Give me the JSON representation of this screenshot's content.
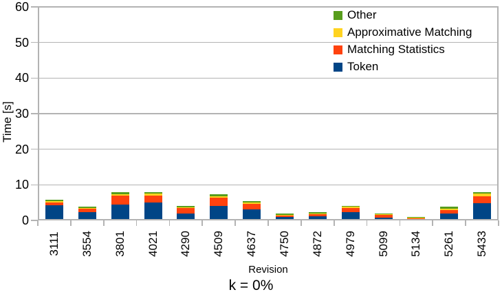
{
  "chart_data": {
    "type": "bar",
    "stacked": true,
    "title": "",
    "subtitle": "k = 0%",
    "xlabel": "Revision",
    "ylabel": "Time [s]",
    "ylim": [
      0,
      60
    ],
    "ytick_step": 10,
    "grid": true,
    "legend_position": "top-right",
    "legend_order_top_to_bottom": [
      "Other",
      "Approximative Matching",
      "Matching Statistics",
      "Token"
    ],
    "categories": [
      "3111",
      "3554",
      "3801",
      "4021",
      "4290",
      "4509",
      "4637",
      "4750",
      "4872",
      "4979",
      "5099",
      "5134",
      "5261",
      "5433"
    ],
    "series": [
      {
        "name": "Token",
        "color": "#004586",
        "values": [
          4.3,
          2.3,
          4.4,
          5.1,
          2.0,
          4.1,
          3.1,
          0.9,
          1.1,
          2.4,
          0.8,
          0.35,
          2.0,
          4.9
        ]
      },
      {
        "name": "Matching Statistics",
        "color": "#ff420e",
        "values": [
          0.8,
          0.9,
          2.5,
          1.95,
          1.4,
          2.3,
          1.6,
          0.5,
          0.6,
          1.15,
          0.7,
          0.25,
          1.0,
          1.95
        ]
      },
      {
        "name": "Approximative Matching",
        "color": "#ffd320",
        "values": [
          0.3,
          0.25,
          0.55,
          0.5,
          0.3,
          0.45,
          0.4,
          0.2,
          0.15,
          0.3,
          0.2,
          0.15,
          0.35,
          0.65
        ]
      },
      {
        "name": "Other",
        "color": "#579d1c",
        "values": [
          0.35,
          0.35,
          0.4,
          0.35,
          0.3,
          0.45,
          0.35,
          0.4,
          0.45,
          0.3,
          0.3,
          0.3,
          0.45,
          0.5
        ]
      }
    ],
    "axis_color": "#b3b3b3",
    "text_color": "#000000",
    "background_color": "#ffffff"
  }
}
